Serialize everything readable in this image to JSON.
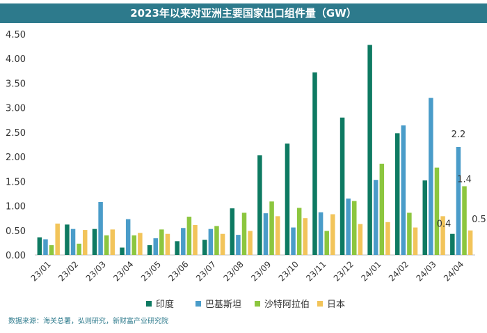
{
  "chart_data": {
    "type": "bar",
    "title": "2023年以来对亚洲主要国家出口组件量（GW）",
    "categories": [
      "23/01",
      "23/02",
      "23/03",
      "23/04",
      "23/05",
      "23/06",
      "23/07",
      "23/08",
      "23/09",
      "23/10",
      "23/11",
      "23/12",
      "24/01",
      "24/02",
      "24/03",
      "24/04"
    ],
    "series": [
      {
        "name": "印度",
        "color": "#0e7a62",
        "values": [
          0.36,
          0.62,
          0.53,
          0.15,
          0.2,
          0.28,
          0.31,
          0.95,
          2.03,
          2.27,
          3.72,
          2.8,
          4.28,
          2.48,
          1.52,
          0.43
        ]
      },
      {
        "name": "巴基斯坦",
        "color": "#4a9cc9",
        "values": [
          0.32,
          0.53,
          1.08,
          0.73,
          0.34,
          0.55,
          0.53,
          0.41,
          0.85,
          0.56,
          0.87,
          1.15,
          1.53,
          2.64,
          3.2,
          2.2
        ]
      },
      {
        "name": "沙特阿拉伯",
        "color": "#8cc63f",
        "values": [
          0.2,
          0.23,
          0.4,
          0.4,
          0.52,
          0.78,
          0.59,
          0.86,
          1.09,
          0.96,
          0.49,
          1.1,
          1.86,
          0.86,
          1.78,
          1.4
        ]
      },
      {
        "name": "日本",
        "color": "#f2c45a",
        "values": [
          0.64,
          0.51,
          0.52,
          0.45,
          0.43,
          0.61,
          0.43,
          0.49,
          0.79,
          0.75,
          0.83,
          0.63,
          0.67,
          0.56,
          0.79,
          0.5
        ]
      }
    ],
    "ylim": [
      0,
      4.5
    ],
    "yticks": [
      "0.00",
      "0.50",
      "1.00",
      "1.50",
      "2.00",
      "2.50",
      "3.00",
      "3.50",
      "4.00",
      "4.50"
    ],
    "grid": false,
    "legend_position": "bottom",
    "annotations": [
      {
        "category": "24/04",
        "series": "巴基斯坦",
        "text": "2.2"
      },
      {
        "category": "24/04",
        "series": "沙特阿拉伯",
        "text": "1.4"
      },
      {
        "category": "24/04",
        "series": "印度",
        "text": "0.4"
      },
      {
        "category": "24/04",
        "series": "日本",
        "text": "0.5"
      }
    ]
  },
  "source": "数据来源：海关总署，弘则研究，新财富产业研究院"
}
